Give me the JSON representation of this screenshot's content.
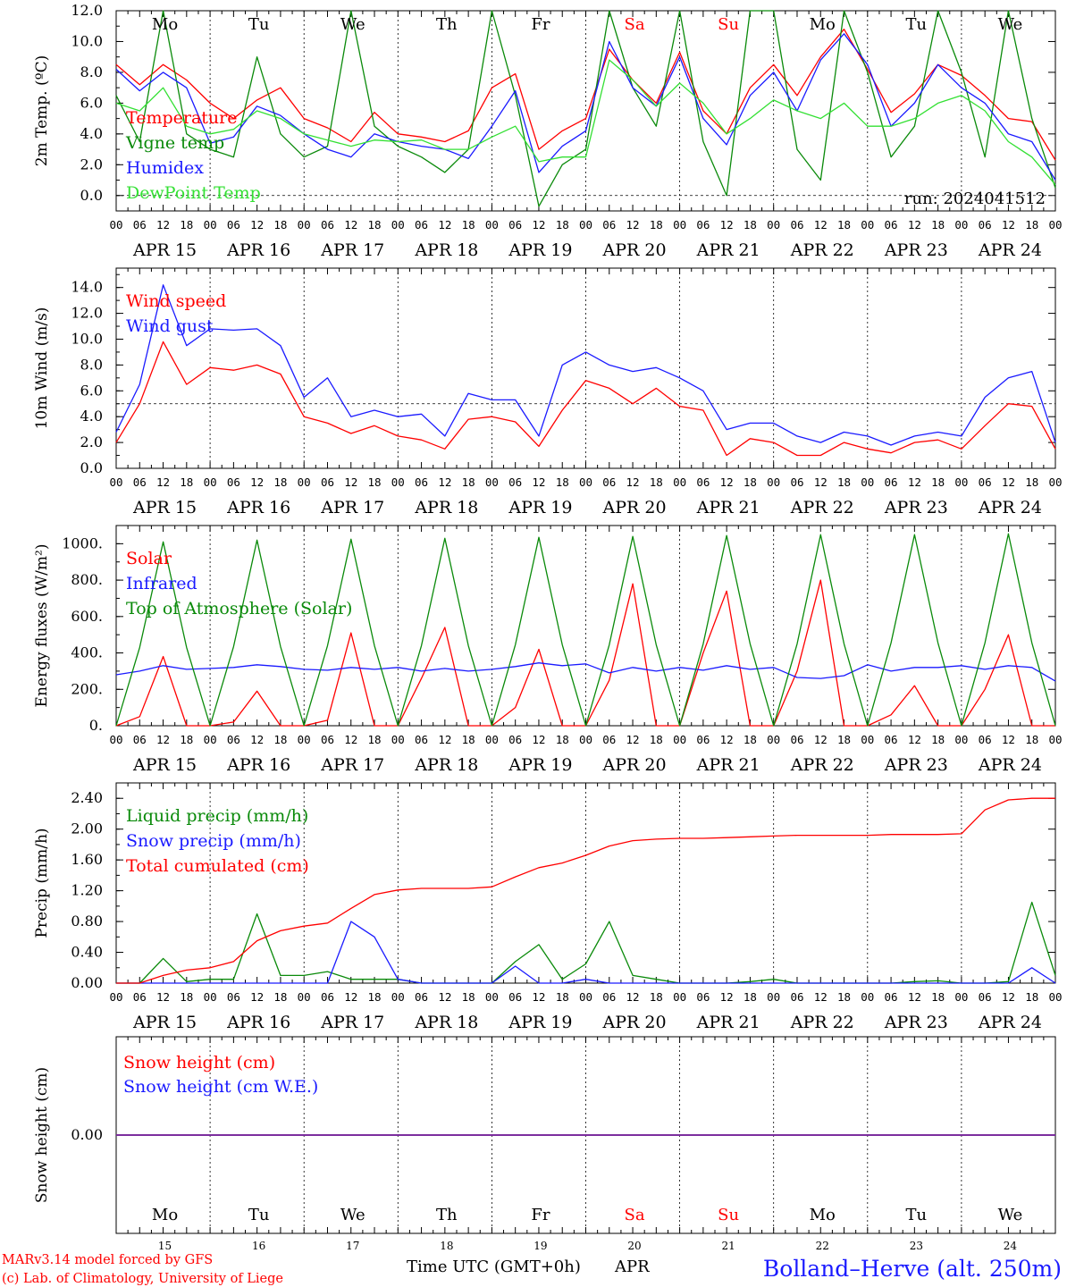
{
  "colors": {
    "red": "#ff0000",
    "green": "#0a8a0a",
    "lightgreen": "#33e033",
    "blue": "#1a1aff",
    "black": "#000000",
    "purple": "#7a2a9a"
  },
  "days": [
    "Mo",
    "Tu",
    "We",
    "Th",
    "Fr",
    "Sa",
    "Su",
    "Mo",
    "Tu",
    "We"
  ],
  "weekend_days": [
    5,
    6
  ],
  "hour_ticks": [
    "00",
    "06",
    "12",
    "18"
  ],
  "final_tick": "00",
  "dates": [
    "APR 15",
    "APR 16",
    "APR 17",
    "APR 18",
    "APR 19",
    "APR 20",
    "APR 21",
    "APR 22",
    "APR 23",
    "APR 24"
  ],
  "bottom_dates": [
    "15",
    "16",
    "17",
    "18",
    "19",
    "20",
    "21",
    "22",
    "23",
    "24"
  ],
  "footer": {
    "model": "MARv3.14 model forced by GFS",
    "credit": "(c) Lab. of Climatology, University of Liege",
    "axis_title": "Time UTC (GMT+0h)",
    "month": "APR",
    "station": "Bolland–Herve (alt. 250m)"
  },
  "chart_data": [
    {
      "type": "line",
      "ylabel": "2m Temp. (ºC)",
      "ylim": [
        -1,
        12
      ],
      "yticks": [
        "0.0",
        "2.0",
        "4.0",
        "6.0",
        "8.0",
        "10.0",
        "12.0"
      ],
      "dashed_reference": 0,
      "run_label": "run: 2024041512",
      "x_hours": [
        0,
        6,
        12,
        18,
        24,
        30,
        36,
        42,
        48,
        54,
        60,
        66,
        72,
        78,
        84,
        90,
        96,
        102,
        108,
        114,
        120,
        126,
        132,
        138,
        144,
        150,
        156,
        162,
        168,
        174,
        180,
        186,
        192,
        198,
        204,
        210,
        216,
        222,
        228,
        234,
        240
      ],
      "series": [
        {
          "name": "Temperature",
          "color": "red",
          "values": [
            8.5,
            7.2,
            8.5,
            7.5,
            6.0,
            5.0,
            6.2,
            7.0,
            5.0,
            4.4,
            3.5,
            5.4,
            4.0,
            3.8,
            3.5,
            4.2,
            7.0,
            7.9,
            3.0,
            4.2,
            5.0,
            9.5,
            7.5,
            6.0,
            9.3,
            5.5,
            4.0,
            7.0,
            8.5,
            6.5,
            9.0,
            10.8,
            8.2,
            5.4,
            6.6,
            8.5,
            7.8,
            6.5,
            5.0,
            4.8,
            2.3
          ]
        },
        {
          "name": "Vigne temp",
          "color": "green",
          "values": [
            6.5,
            3.5,
            12.0,
            4.0,
            3.0,
            2.5,
            9.0,
            4.0,
            2.5,
            3.2,
            12.0,
            4.5,
            3.2,
            2.5,
            1.5,
            3.0,
            12.0,
            6.5,
            -0.7,
            2.0,
            3.0,
            12.0,
            7.0,
            4.5,
            12.0,
            3.5,
            0.0,
            12.0,
            12.0,
            3.0,
            1.0,
            12.0,
            8.0,
            2.5,
            4.5,
            12.0,
            8.0,
            2.5,
            12.0,
            5.0,
            0.5
          ]
        },
        {
          "name": "Humidex",
          "color": "blue",
          "values": [
            8.2,
            6.8,
            8.0,
            7.0,
            3.4,
            3.8,
            5.8,
            5.2,
            4.0,
            3.0,
            2.5,
            4.0,
            3.5,
            3.2,
            3.0,
            2.4,
            4.5,
            6.8,
            1.5,
            3.2,
            4.2,
            10.0,
            7.0,
            5.8,
            9.0,
            5.0,
            3.3,
            6.5,
            8.0,
            5.5,
            8.8,
            10.5,
            8.5,
            4.5,
            6.0,
            8.5,
            7.0,
            6.0,
            4.0,
            3.5,
            1.0
          ]
        },
        {
          "name": "DewPoint Temp",
          "color": "lightgreen",
          "values": [
            6.0,
            5.5,
            7.0,
            4.5,
            4.0,
            4.3,
            5.5,
            5.0,
            4.0,
            3.6,
            3.2,
            3.6,
            3.5,
            3.6,
            3.0,
            3.0,
            3.8,
            4.5,
            2.2,
            2.5,
            2.5,
            8.8,
            7.5,
            5.8,
            7.3,
            6.0,
            4.0,
            5.0,
            6.2,
            5.5,
            5.0,
            6.0,
            4.5,
            4.5,
            5.0,
            6.0,
            6.5,
            5.5,
            3.5,
            2.5,
            0.7
          ]
        }
      ]
    },
    {
      "type": "line",
      "ylabel": "10m Wind (m/s)",
      "ylim": [
        0,
        15.5
      ],
      "yticks": [
        "0.0",
        "2.0",
        "4.0",
        "6.0",
        "8.0",
        "10.0",
        "12.0",
        "14.0"
      ],
      "dashed_reference": 5,
      "x_hours": [
        0,
        6,
        12,
        18,
        24,
        30,
        36,
        42,
        48,
        54,
        60,
        66,
        72,
        78,
        84,
        90,
        96,
        102,
        108,
        114,
        120,
        126,
        132,
        138,
        144,
        150,
        156,
        162,
        168,
        174,
        180,
        186,
        192,
        198,
        204,
        210,
        216,
        222,
        228,
        234,
        240
      ],
      "series": [
        {
          "name": "Wind speed",
          "color": "red",
          "values": [
            2.0,
            5.0,
            9.8,
            6.5,
            7.8,
            7.6,
            8.0,
            7.3,
            4.0,
            3.5,
            2.7,
            3.3,
            2.5,
            2.2,
            1.5,
            3.8,
            4.0,
            3.6,
            1.7,
            4.5,
            6.8,
            6.2,
            5.0,
            6.2,
            4.8,
            4.5,
            1.0,
            2.3,
            2.0,
            1.0,
            1.0,
            2.0,
            1.5,
            1.2,
            2.0,
            2.2,
            1.5,
            3.3,
            5.0,
            4.8,
            1.5
          ]
        },
        {
          "name": "Wind gust",
          "color": "blue",
          "values": [
            2.8,
            6.5,
            14.2,
            9.5,
            10.8,
            10.7,
            10.8,
            9.5,
            5.5,
            7.0,
            4.0,
            4.5,
            4.0,
            4.2,
            2.5,
            5.8,
            5.3,
            5.3,
            2.5,
            8.0,
            9.0,
            8.0,
            7.5,
            7.8,
            7.0,
            6.0,
            3.0,
            3.5,
            3.5,
            2.5,
            2.0,
            2.8,
            2.5,
            1.8,
            2.5,
            2.8,
            2.5,
            5.5,
            7.0,
            7.5,
            2.0
          ]
        }
      ]
    },
    {
      "type": "line",
      "ylabel": "Energy fluxes (W/m²)",
      "ylim": [
        0,
        1100
      ],
      "yticks": [
        "0.",
        "200.",
        "400.",
        "600.",
        "800.",
        "1000."
      ],
      "x_hours": [
        0,
        6,
        12,
        18,
        24,
        30,
        36,
        42,
        48,
        54,
        60,
        66,
        72,
        78,
        84,
        90,
        96,
        102,
        108,
        114,
        120,
        126,
        132,
        138,
        144,
        150,
        156,
        162,
        168,
        174,
        180,
        186,
        192,
        198,
        204,
        210,
        216,
        222,
        228,
        234,
        240
      ],
      "series": [
        {
          "name": "Solar",
          "color": "red",
          "values": [
            0,
            50,
            380,
            0,
            0,
            20,
            190,
            0,
            0,
            30,
            510,
            0,
            0,
            260,
            540,
            0,
            0,
            100,
            420,
            0,
            0,
            250,
            780,
            0,
            0,
            400,
            740,
            0,
            0,
            300,
            800,
            0,
            0,
            60,
            220,
            0,
            0,
            200,
            500,
            0,
            0
          ]
        },
        {
          "name": "Infrared",
          "color": "blue",
          "values": [
            280,
            300,
            330,
            310,
            315,
            320,
            335,
            325,
            310,
            305,
            320,
            310,
            320,
            300,
            315,
            300,
            310,
            325,
            345,
            330,
            340,
            290,
            320,
            300,
            320,
            305,
            330,
            310,
            320,
            265,
            260,
            275,
            335,
            300,
            320,
            320,
            330,
            310,
            330,
            320,
            245
          ]
        },
        {
          "name": "Top of Atmosphere (Solar)",
          "color": "green",
          "values": [
            0,
            430,
            1010,
            430,
            0,
            435,
            1020,
            435,
            0,
            440,
            1025,
            440,
            0,
            440,
            1030,
            440,
            0,
            445,
            1035,
            445,
            0,
            445,
            1040,
            445,
            0,
            450,
            1045,
            450,
            0,
            450,
            1050,
            450,
            0,
            455,
            1050,
            455,
            0,
            455,
            1055,
            455,
            0
          ]
        }
      ]
    },
    {
      "type": "line",
      "ylabel": "Precip (mm/h)",
      "ylim": [
        0,
        2.6
      ],
      "yticks": [
        "0.00",
        "0.40",
        "0.80",
        "1.20",
        "1.60",
        "2.00",
        "2.40"
      ],
      "x_hours": [
        0,
        6,
        12,
        18,
        24,
        30,
        36,
        42,
        48,
        54,
        60,
        66,
        72,
        78,
        84,
        90,
        96,
        102,
        108,
        114,
        120,
        126,
        132,
        138,
        144,
        150,
        156,
        162,
        168,
        174,
        180,
        186,
        192,
        198,
        204,
        210,
        216,
        222,
        228,
        234,
        240
      ],
      "series": [
        {
          "name": "Liquid precip (mm/h)",
          "color": "green",
          "values": [
            0,
            0,
            0.32,
            0.02,
            0.05,
            0.05,
            0.9,
            0.1,
            0.1,
            0.15,
            0.05,
            0.05,
            0.05,
            0,
            0,
            0,
            0,
            0.28,
            0.5,
            0.05,
            0.25,
            0.8,
            0.1,
            0.05,
            0,
            0,
            0,
            0.02,
            0.05,
            0,
            0,
            0,
            0,
            0,
            0.02,
            0.03,
            0,
            0,
            0.02,
            1.05,
            0.1
          ]
        },
        {
          "name": "Snow precip (mm/h)",
          "color": "blue",
          "values": [
            0,
            0,
            0,
            0,
            0,
            0,
            0,
            0,
            0,
            0,
            0.8,
            0.6,
            0.05,
            0,
            0,
            0,
            0,
            0.22,
            0,
            0,
            0.05,
            0,
            0,
            0,
            0,
            0,
            0,
            0,
            0,
            0,
            0,
            0,
            0,
            0,
            0,
            0,
            0,
            0,
            0,
            0.2,
            0
          ]
        },
        {
          "name": "Total cumulated (cm)",
          "color": "red",
          "values": [
            0,
            0,
            0.1,
            0.17,
            0.2,
            0.28,
            0.55,
            0.68,
            0.74,
            0.78,
            0.97,
            1.15,
            1.21,
            1.23,
            1.23,
            1.23,
            1.25,
            1.38,
            1.5,
            1.56,
            1.66,
            1.78,
            1.85,
            1.87,
            1.88,
            1.88,
            1.89,
            1.9,
            1.91,
            1.92,
            1.92,
            1.92,
            1.92,
            1.93,
            1.93,
            1.93,
            1.94,
            2.25,
            2.38,
            2.4,
            2.4
          ]
        }
      ]
    },
    {
      "type": "line",
      "ylabel": "Snow height (cm)",
      "ylim": [
        -1,
        1
      ],
      "yticks": [
        "0.00"
      ],
      "x_hours": [
        0,
        240
      ],
      "series": [
        {
          "name": "Snow height (cm)",
          "color": "red",
          "values": [
            0,
            0
          ]
        },
        {
          "name": "Snow height (cm W.E.)",
          "color": "blue",
          "values": [
            0,
            0
          ]
        }
      ]
    }
  ]
}
